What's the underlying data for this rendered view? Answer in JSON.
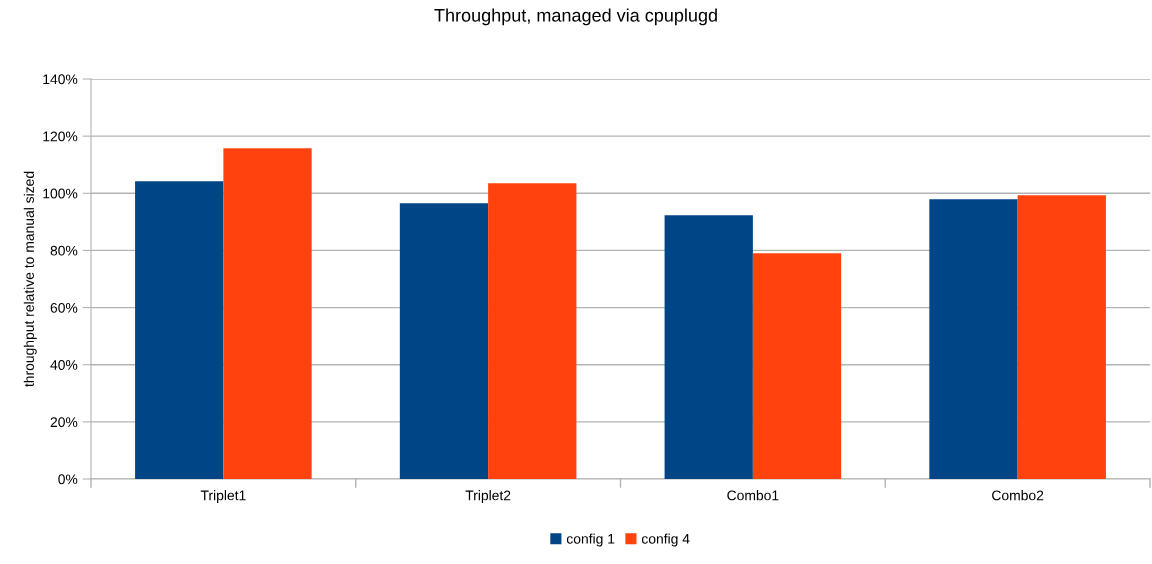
{
  "chart_data": {
    "type": "bar",
    "title": "Throughput, managed via cpuplugd",
    "ylabel": "throughput relative to manual sized",
    "categories": [
      "Triplet1",
      "Triplet2",
      "Combo1",
      "Combo2"
    ],
    "series": [
      {
        "name": "config 1",
        "color": "#004586",
        "values": [
          104.2,
          96.5,
          92.3,
          97.9
        ]
      },
      {
        "name": "config 4",
        "color": "#ff420e",
        "values": [
          115.8,
          103.5,
          79.0,
          99.3
        ]
      }
    ],
    "ylim": [
      0,
      140
    ],
    "yticks": [
      {
        "value": 0,
        "label": "0%"
      },
      {
        "value": 20,
        "label": "20%"
      },
      {
        "value": 40,
        "label": "40%"
      },
      {
        "value": 60,
        "label": "60%"
      },
      {
        "value": 80,
        "label": "80%"
      },
      {
        "value": 100,
        "label": "100%"
      },
      {
        "value": 120,
        "label": "120%"
      },
      {
        "value": 140,
        "label": "140%"
      }
    ],
    "grid": "y",
    "legend": "bottom"
  }
}
